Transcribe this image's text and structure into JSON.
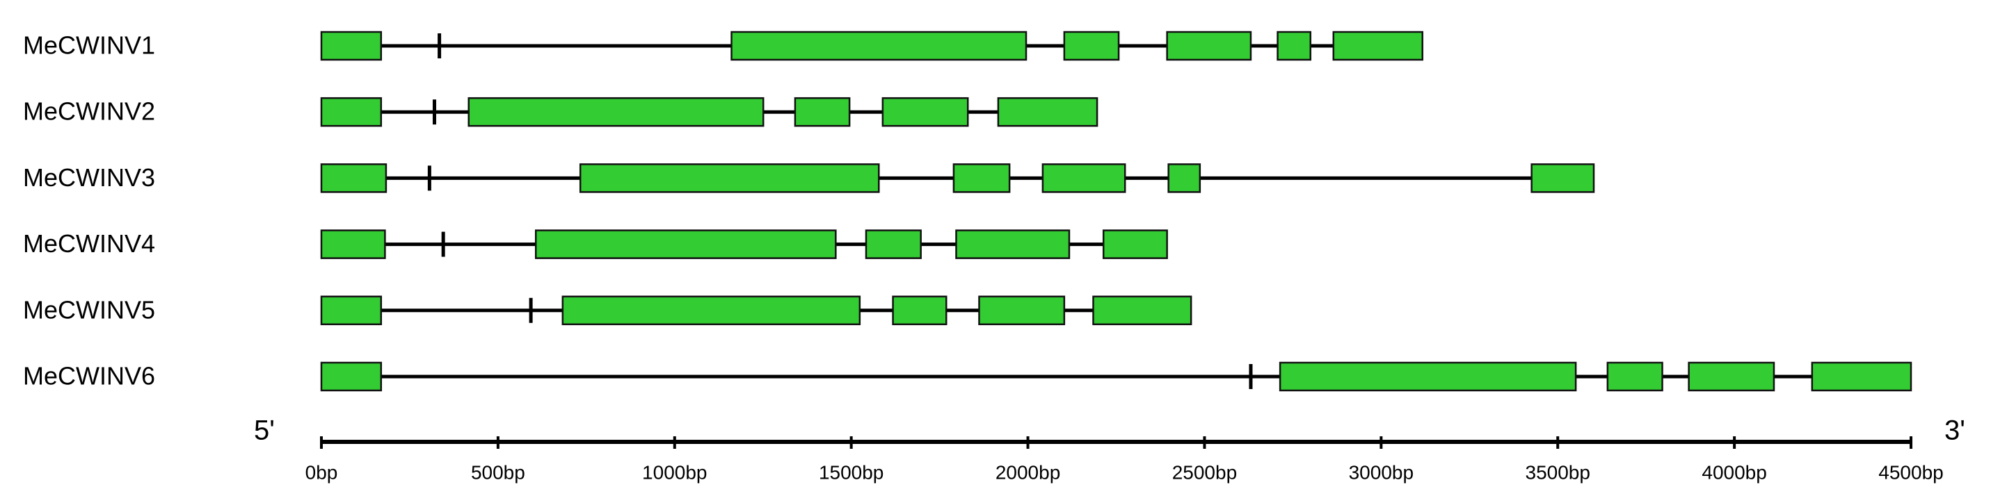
{
  "genes": [
    {
      "name": "MeCWINV1",
      "marker": 334,
      "exons": [
        [
          0,
          169
        ],
        [
          1161,
          1995
        ],
        [
          2103,
          2257
        ],
        [
          2394,
          2631
        ],
        [
          2707,
          2800
        ],
        [
          2865,
          3117
        ]
      ]
    },
    {
      "name": "MeCWINV2",
      "marker": 320,
      "exons": [
        [
          0,
          169
        ],
        [
          417,
          1251
        ],
        [
          1341,
          1495
        ],
        [
          1589,
          1830
        ],
        [
          1916,
          2196
        ]
      ]
    },
    {
      "name": "MeCWINV3",
      "marker": 306,
      "exons": [
        [
          0,
          183
        ],
        [
          733,
          1578
        ],
        [
          1790,
          1948
        ],
        [
          2042,
          2275
        ],
        [
          2398,
          2487
        ],
        [
          3426,
          3602
        ]
      ]
    },
    {
      "name": "MeCWINV4",
      "marker": 345,
      "exons": [
        [
          0,
          180
        ],
        [
          607,
          1456
        ],
        [
          1542,
          1697
        ],
        [
          1797,
          2117
        ],
        [
          2214,
          2394
        ]
      ]
    },
    {
      "name": "MeCWINV5",
      "marker": 593,
      "exons": [
        [
          0,
          169
        ],
        [
          683,
          1524
        ],
        [
          1618,
          1769
        ],
        [
          1862,
          2103
        ],
        [
          2185,
          2462
        ]
      ]
    },
    {
      "name": "MeCWINV6",
      "marker": 2631,
      "exons": [
        [
          0,
          169
        ],
        [
          2714,
          3551
        ],
        [
          3641,
          3796
        ],
        [
          3871,
          4112
        ],
        [
          4220,
          4500
        ]
      ]
    }
  ],
  "axis": {
    "start_label": "5'",
    "end_label": "3'",
    "xlim": [
      0,
      4500
    ],
    "ticks": [
      {
        "value": 0,
        "label": "0bp"
      },
      {
        "value": 500,
        "label": "500bp"
      },
      {
        "value": 1000,
        "label": "1000bp"
      },
      {
        "value": 1500,
        "label": "1500bp"
      },
      {
        "value": 2000,
        "label": "2000bp"
      },
      {
        "value": 2500,
        "label": "2500bp"
      },
      {
        "value": 3000,
        "label": "3000bp"
      },
      {
        "value": 3500,
        "label": "3500bp"
      },
      {
        "value": 4000,
        "label": "4000bp"
      },
      {
        "value": 4500,
        "label": "4500bp"
      }
    ]
  }
}
